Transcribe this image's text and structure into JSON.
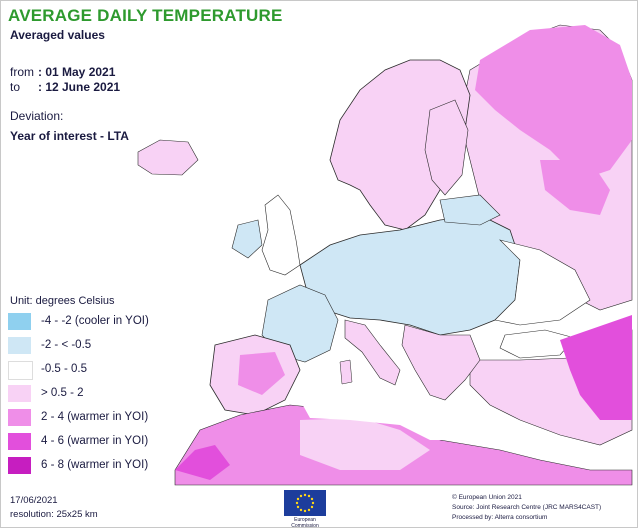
{
  "map": {
    "title": "AVERAGE DAILY TEMPERATURE",
    "subtitle": "Averaged values",
    "period": {
      "from_label": "from",
      "from_value": ": 01 May 2021",
      "to_label": "to",
      "to_value": ": 12 June 2021"
    },
    "deviation_label": "Deviation:",
    "deviation_value": "Year of interest - LTA"
  },
  "legend": {
    "unit": "Unit: degrees Celsius",
    "items": [
      {
        "label": "-4 - -2 (cooler in YOI)",
        "color": "#8fd0ef"
      },
      {
        "label": "-2 - < -0.5",
        "color": "#cfe7f5"
      },
      {
        "label": "-0.5 - 0.5",
        "color": "#ffffff"
      },
      {
        "label": "> 0.5 - 2",
        "color": "#f8d2f5"
      },
      {
        "label": "2 - 4 (warmer in YOI)",
        "color": "#ef8ee8"
      },
      {
        "label": "4 - 6 (warmer in YOI)",
        "color": "#e24fdc"
      },
      {
        "label": "6 - 8 (warmer in YOI)",
        "color": "#c61ec0"
      }
    ]
  },
  "footer": {
    "date": "17/06/2021",
    "resolution": "resolution:  25x25 km",
    "eu_logo_text": "European Commission",
    "credits": [
      "© European Union 2021",
      "Source: Joint Research Centre (JRC MARS4CAST)",
      "Processed by: Alterra consortium"
    ]
  },
  "colors": {
    "title": "#2e9a2e",
    "land_neutral": "#ffffff",
    "cooler": "#cfe7f5",
    "warmer_light": "#f8d2f5",
    "warmer": "#ef8ee8",
    "warmer_strong": "#e24fdc",
    "border_lines": "#2a2a2a"
  }
}
